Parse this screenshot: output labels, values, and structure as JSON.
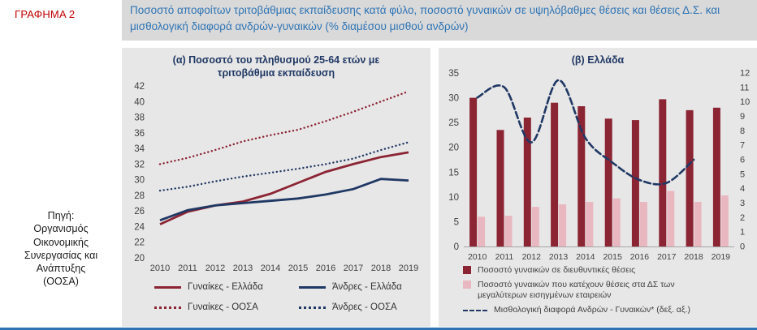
{
  "figure_label": "ΓΡΑΦΗΜΑ 2",
  "title": "Ποσοστό αποφοίτων τριτοβάθμιας εκπαίδευσης κατά φύλο, ποσοστό γυναικών σε υψηλόβαθμες θέσεις και θέσεις Δ.Σ. και μισθολογική διαφορά ανδρών-γυναικών (% διαμέσου μισθού ανδρών)",
  "source": {
    "lines": [
      "Πηγή:",
      "Οργανισμός",
      "Οικονομικής",
      "Συνεργασίας και",
      "Ανάπτυξης",
      "(ΟΟΣΑ)"
    ]
  },
  "colors": {
    "figure_label_red": "#C00000",
    "maroon": "#8B2433",
    "navy": "#1F3864",
    "pink": "#E9B7C0",
    "title_blue": "#2E74B5",
    "panel_gray": "#E8E7E7",
    "titlebar_gray": "#D9D9D9",
    "bottom_rule_blue": "#2E74B5"
  },
  "chart_data": [
    {
      "type": "line",
      "title": "(α) Ποσοστό του πληθυσμού 25-64 ετών με τριτοβάθμια εκπαίδευση",
      "x": [
        2010,
        2011,
        2012,
        2013,
        2014,
        2015,
        2016,
        2017,
        2018,
        2019
      ],
      "ylim": [
        20,
        42
      ],
      "ytick_step": 2,
      "grid": false,
      "legend_position": "bottom",
      "series": [
        {
          "name": "Γυναίκες - Ελλάδα",
          "style": "solid",
          "color": "#8B2433",
          "values": [
            24.3,
            25.9,
            26.7,
            27.2,
            28.2,
            29.6,
            31.0,
            32.0,
            32.9,
            33.5
          ]
        },
        {
          "name": "Άνδρες - Ελλάδα",
          "style": "solid",
          "color": "#1F3864",
          "values": [
            24.8,
            26.1,
            26.7,
            27.0,
            27.3,
            27.6,
            28.1,
            28.8,
            30.1,
            29.9
          ]
        },
        {
          "name": "Γυναίκες - ΟΟΣΑ",
          "style": "dotted",
          "color": "#8B2433",
          "values": [
            32.0,
            32.8,
            33.8,
            34.9,
            35.7,
            36.4,
            37.5,
            38.7,
            40.0,
            41.3
          ]
        },
        {
          "name": "Άνδρες - ΟΟΣΑ",
          "style": "dotted",
          "color": "#1F3864",
          "values": [
            28.6,
            29.1,
            29.8,
            30.4,
            30.9,
            31.4,
            32.0,
            32.7,
            33.8,
            34.8
          ]
        }
      ]
    },
    {
      "type": "bar",
      "title": "(β) Ελλάδα",
      "x": [
        2010,
        2011,
        2012,
        2013,
        2014,
        2015,
        2016,
        2017,
        2018,
        2019
      ],
      "ylim_left": [
        0,
        35
      ],
      "ytick_step_left": 5,
      "ylim_right": [
        0,
        12
      ],
      "ytick_step_right": 1,
      "grid": false,
      "legend_position": "bottom",
      "bar_series": [
        {
          "name": "Ποσοστό γυναικών σε διευθυντικές θέσεις",
          "color": "#8B2433",
          "axis": "left",
          "values": [
            30.0,
            23.5,
            26.0,
            29.0,
            28.3,
            25.8,
            25.5,
            29.7,
            27.5,
            28.0
          ]
        },
        {
          "name": "Ποσοστό γυναικών που κατέχουν θέσεις στα ΔΣ των μεγαλύτερων εισηγμένων εταιρειών",
          "color": "#E9B7C0",
          "axis": "left",
          "values": [
            6.0,
            6.2,
            8.0,
            8.5,
            9.0,
            9.7,
            9.0,
            11.2,
            9.0,
            10.3
          ]
        }
      ],
      "line_series": [
        {
          "name": "Μισθολογική διαφορά Ανδρών - Γυναικών* (δεξ. αξ.)",
          "style": "dashed",
          "color": "#1F3864",
          "axis": "right",
          "values": [
            10.3,
            11.0,
            7.2,
            11.5,
            7.5,
            5.8,
            4.6,
            4.4,
            6.0,
            null
          ]
        }
      ]
    }
  ]
}
